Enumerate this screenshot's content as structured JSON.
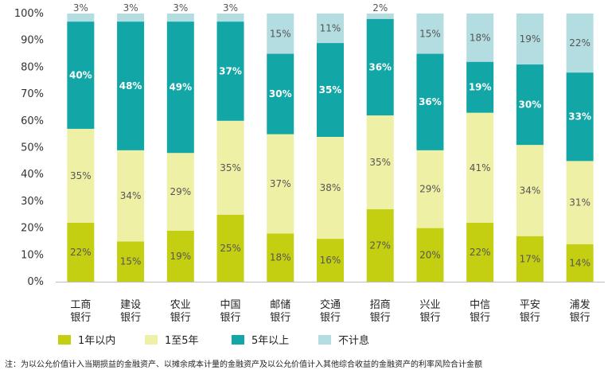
{
  "chart_data": {
    "type": "bar",
    "stacked": true,
    "categories": [
      "工商\n银行",
      "建设\n银行",
      "农业\n银行",
      "中国\n银行",
      "邮储\n银行",
      "交通\n银行",
      "招商\n银行",
      "兴业\n银行",
      "中信\n银行",
      "平安\n银行",
      "浦发\n银行"
    ],
    "series": [
      {
        "name": "1年以内",
        "color": "#c4cf12",
        "values": [
          22,
          15,
          19,
          25,
          18,
          16,
          27,
          20,
          22,
          17,
          14
        ]
      },
      {
        "name": "1至5年",
        "color": "#eef0a6",
        "values": [
          35,
          34,
          29,
          35,
          37,
          38,
          35,
          29,
          41,
          34,
          31
        ]
      },
      {
        "name": "5年以上",
        "color": "#13a6a6",
        "values": [
          40,
          48,
          49,
          37,
          30,
          35,
          36,
          36,
          19,
          30,
          33
        ]
      },
      {
        "name": "不计息",
        "color": "#b3dde0",
        "values": [
          3,
          3,
          3,
          3,
          15,
          11,
          2,
          15,
          18,
          19,
          22
        ]
      }
    ],
    "yticks": [
      "0%",
      "10%",
      "20%",
      "30%",
      "40%",
      "50%",
      "60%",
      "70%",
      "80%",
      "90%",
      "100%"
    ],
    "ylim": [
      0,
      100
    ],
    "legend_position": "bottom",
    "grid": false
  },
  "note": "注：为以公允价值计入当期损益的金融资产、以摊余成本计量的金融资产及以公允价值计入其他综合收益的金融资产的利率风险合计金额"
}
